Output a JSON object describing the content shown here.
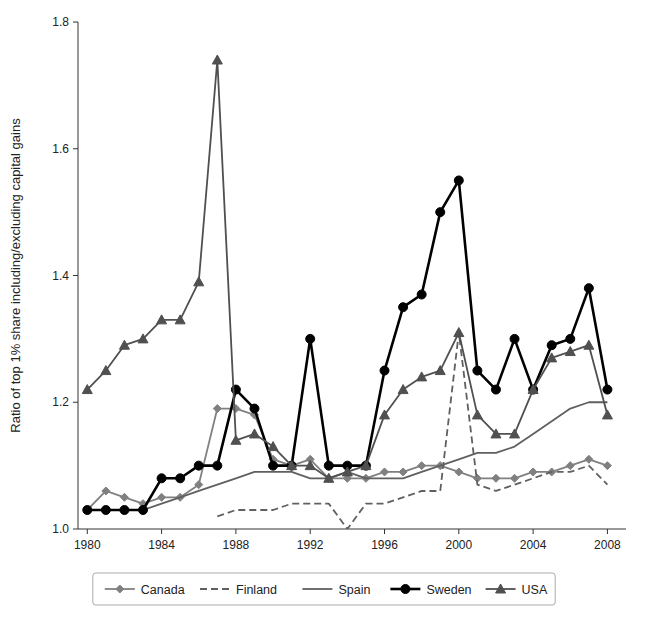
{
  "chart_data": {
    "type": "line",
    "ylabel": "Ratio of top 1% share including/excluding capital gains",
    "x": [
      1980,
      1981,
      1982,
      1983,
      1984,
      1985,
      1986,
      1987,
      1988,
      1989,
      1990,
      1991,
      1992,
      1993,
      1994,
      1995,
      1996,
      1997,
      1998,
      1999,
      2000,
      2001,
      2002,
      2003,
      2004,
      2005,
      2006,
      2007,
      2008
    ],
    "xlim": [
      1979.5,
      2009
    ],
    "xticks": [
      1980,
      1984,
      1988,
      1992,
      1996,
      2000,
      2004,
      2008
    ],
    "ylim": [
      1.0,
      1.8
    ],
    "yticks": [
      {
        "value": 1.0,
        "label": "1.0"
      },
      1.2,
      1.4,
      1.6,
      1.8
    ],
    "grid": false,
    "legend": "bottom",
    "series": [
      {
        "name": "Canada",
        "color": "#808080",
        "marker": "diamond",
        "line_style": "solid",
        "values": [
          1.03,
          1.06,
          1.05,
          1.04,
          1.05,
          1.05,
          1.07,
          1.19,
          1.19,
          1.18,
          1.11,
          1.1,
          1.11,
          1.08,
          1.08,
          1.08,
          1.09,
          1.09,
          1.1,
          1.1,
          1.09,
          1.08,
          1.08,
          1.08,
          1.09,
          1.09,
          1.1,
          1.11,
          1.1
        ]
      },
      {
        "name": "Finland",
        "color": "#606060",
        "marker": "none",
        "line_style": "dashed",
        "values": [
          null,
          null,
          null,
          null,
          null,
          null,
          null,
          1.02,
          1.03,
          1.03,
          1.03,
          1.04,
          1.04,
          1.04,
          1.0,
          1.04,
          1.04,
          1.05,
          1.06,
          1.06,
          1.31,
          1.07,
          1.06,
          1.07,
          1.08,
          1.09,
          1.09,
          1.1,
          1.07
        ]
      },
      {
        "name": "Spain",
        "color": "#606060",
        "marker": "none",
        "line_style": "solid",
        "values": [
          null,
          1.03,
          1.03,
          1.03,
          1.04,
          1.05,
          1.06,
          1.07,
          1.08,
          1.09,
          1.09,
          1.09,
          1.08,
          1.08,
          1.09,
          1.08,
          1.08,
          1.08,
          1.09,
          1.1,
          1.11,
          1.12,
          1.12,
          1.13,
          1.15,
          1.17,
          1.19,
          1.2,
          1.2
        ]
      },
      {
        "name": "Sweden",
        "color": "#000000",
        "marker": "circle",
        "line_style": "solid",
        "values": [
          1.03,
          1.03,
          1.03,
          1.03,
          1.08,
          1.08,
          1.1,
          1.1,
          1.22,
          1.19,
          1.1,
          1.1,
          1.3,
          1.1,
          1.1,
          1.1,
          1.25,
          1.35,
          1.37,
          1.5,
          1.55,
          1.25,
          1.22,
          1.3,
          1.22,
          1.29,
          1.3,
          1.38,
          1.22
        ]
      },
      {
        "name": "USA",
        "color": "#505050",
        "marker": "triangle",
        "line_style": "solid",
        "values": [
          1.22,
          1.25,
          1.29,
          1.3,
          1.33,
          1.33,
          1.39,
          1.74,
          1.14,
          1.15,
          1.13,
          1.1,
          1.1,
          1.08,
          1.09,
          1.1,
          1.18,
          1.22,
          1.24,
          1.25,
          1.31,
          1.18,
          1.15,
          1.15,
          1.22,
          1.27,
          1.28,
          1.29,
          1.18
        ]
      }
    ]
  }
}
